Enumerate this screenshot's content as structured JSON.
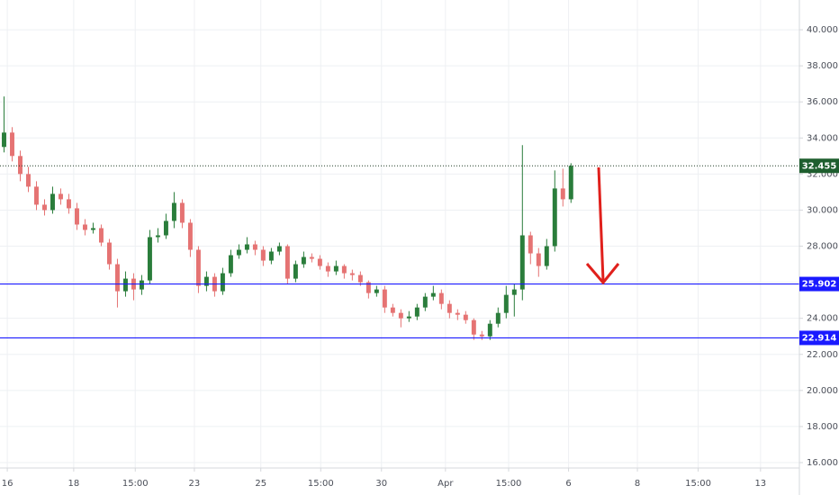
{
  "chart_data": {
    "type": "candlestick",
    "xlim": [
      -0.5,
      98.2
    ],
    "ylim": [
      15.7,
      41.65
    ],
    "xticks": [
      {
        "value": 0.4,
        "label": "16"
      },
      {
        "value": 8.6,
        "label": "18"
      },
      {
        "value": 16.2,
        "label": "15:00"
      },
      {
        "value": 23.5,
        "label": "23"
      },
      {
        "value": 31.7,
        "label": "25"
      },
      {
        "value": 39.1,
        "label": "15:00"
      },
      {
        "value": 46.6,
        "label": "30"
      },
      {
        "value": 54.5,
        "label": "Apr"
      },
      {
        "value": 62.3,
        "label": "15:00"
      },
      {
        "value": 69.7,
        "label": "6"
      },
      {
        "value": 78.2,
        "label": "8"
      },
      {
        "value": 85.7,
        "label": "15:00"
      },
      {
        "value": 93.4,
        "label": "13"
      }
    ],
    "yticks": [
      {
        "value": 16,
        "label": "16.000"
      },
      {
        "value": 18,
        "label": "18.000"
      },
      {
        "value": 20,
        "label": "20.000"
      },
      {
        "value": 22,
        "label": "22.000"
      },
      {
        "value": 24,
        "label": "24.000"
      },
      {
        "value": 26,
        "label": "26.000"
      },
      {
        "value": 28,
        "label": "28.000"
      },
      {
        "value": 30,
        "label": "30.000"
      },
      {
        "value": 32,
        "label": "32.000"
      },
      {
        "value": 34,
        "label": "34.000"
      },
      {
        "value": 36,
        "label": "36.000"
      },
      {
        "value": 38,
        "label": "38.000"
      },
      {
        "value": 40,
        "label": "40.000"
      }
    ],
    "grid": true,
    "up_color": "#2a7d3b",
    "down_color": "#e57373",
    "open": [
      33.5,
      34.3,
      33.0,
      32.0,
      31.3,
      30.3,
      30.0,
      30.9,
      30.6,
      30.1,
      29.2,
      28.9,
      29.0,
      28.2,
      27.0,
      25.5,
      26.2,
      25.6,
      26.1,
      28.5,
      28.6,
      29.4,
      30.4,
      29.3,
      27.8,
      25.8,
      26.3,
      25.5,
      26.5,
      27.5,
      27.8,
      28.1,
      27.8,
      27.2,
      27.7,
      28.0,
      26.2,
      27.0,
      27.4,
      27.3,
      26.9,
      26.6,
      26.9,
      26.5,
      26.4,
      26.0,
      25.4,
      25.6,
      24.6,
      24.3,
      24.0,
      24.1,
      24.6,
      25.2,
      25.4,
      24.8,
      24.3,
      24.2,
      23.9,
      23.1,
      23.0,
      23.7,
      24.3,
      25.3,
      25.6,
      28.6,
      27.6,
      26.9,
      28.0,
      31.2,
      30.6
    ],
    "high": [
      36.3,
      34.6,
      33.3,
      32.4,
      31.6,
      30.6,
      31.3,
      31.2,
      30.9,
      30.4,
      29.5,
      29.3,
      29.2,
      28.4,
      27.3,
      26.6,
      26.5,
      26.4,
      28.9,
      29.0,
      29.8,
      31.0,
      30.6,
      29.5,
      28.0,
      26.6,
      26.5,
      26.8,
      27.8,
      28.1,
      28.5,
      28.3,
      28.0,
      27.9,
      28.2,
      28.1,
      27.2,
      27.7,
      27.6,
      27.5,
      27.1,
      27.2,
      27.0,
      26.7,
      26.6,
      26.1,
      25.8,
      25.8,
      24.8,
      24.5,
      24.4,
      24.8,
      25.4,
      25.8,
      25.6,
      25.0,
      24.5,
      24.4,
      24.0,
      23.3,
      23.9,
      24.6,
      25.8,
      25.9,
      33.6,
      28.8,
      27.9,
      28.4,
      32.2,
      32.3,
      32.6
    ],
    "low": [
      33.2,
      32.7,
      31.6,
      31.0,
      30.0,
      29.7,
      29.8,
      30.3,
      29.8,
      28.9,
      28.6,
      28.7,
      28.0,
      26.7,
      24.6,
      25.2,
      25.0,
      25.3,
      25.9,
      28.2,
      28.4,
      29.0,
      29.0,
      27.4,
      25.4,
      25.5,
      25.2,
      25.3,
      26.3,
      27.3,
      27.6,
      27.5,
      26.9,
      27.0,
      27.5,
      25.9,
      26.0,
      26.8,
      27.1,
      26.7,
      26.3,
      26.4,
      26.2,
      26.1,
      25.8,
      25.1,
      25.2,
      24.3,
      24.1,
      23.5,
      23.8,
      23.9,
      24.4,
      25.0,
      24.5,
      24.0,
      23.9,
      23.7,
      22.8,
      22.8,
      22.8,
      23.5,
      24.0,
      24.1,
      25.0,
      27.0,
      26.3,
      26.7,
      27.7,
      30.2,
      30.4
    ],
    "close": [
      34.3,
      33.0,
      32.0,
      31.3,
      30.3,
      30.0,
      30.9,
      30.6,
      30.1,
      29.2,
      28.9,
      29.0,
      28.2,
      27.0,
      25.5,
      26.2,
      25.6,
      26.1,
      28.5,
      28.6,
      29.4,
      30.4,
      29.3,
      27.8,
      25.8,
      26.3,
      25.5,
      26.5,
      27.5,
      27.8,
      28.1,
      27.8,
      27.2,
      27.7,
      28.0,
      26.2,
      27.0,
      27.4,
      27.3,
      26.9,
      26.6,
      26.9,
      26.5,
      26.4,
      26.0,
      25.4,
      25.6,
      24.6,
      24.3,
      24.0,
      24.1,
      24.6,
      25.2,
      25.4,
      24.8,
      24.3,
      24.2,
      23.9,
      23.1,
      23.0,
      23.7,
      24.3,
      25.3,
      25.6,
      28.6,
      27.6,
      26.9,
      28.0,
      31.2,
      30.6,
      32.455
    ],
    "horizontal_lines": [
      {
        "value": 25.902,
        "color": "#1a1aff"
      },
      {
        "value": 22.914,
        "color": "#1a1aff"
      }
    ],
    "last_price": {
      "value": 32.455,
      "color": "#1e5e2e"
    }
  }
}
